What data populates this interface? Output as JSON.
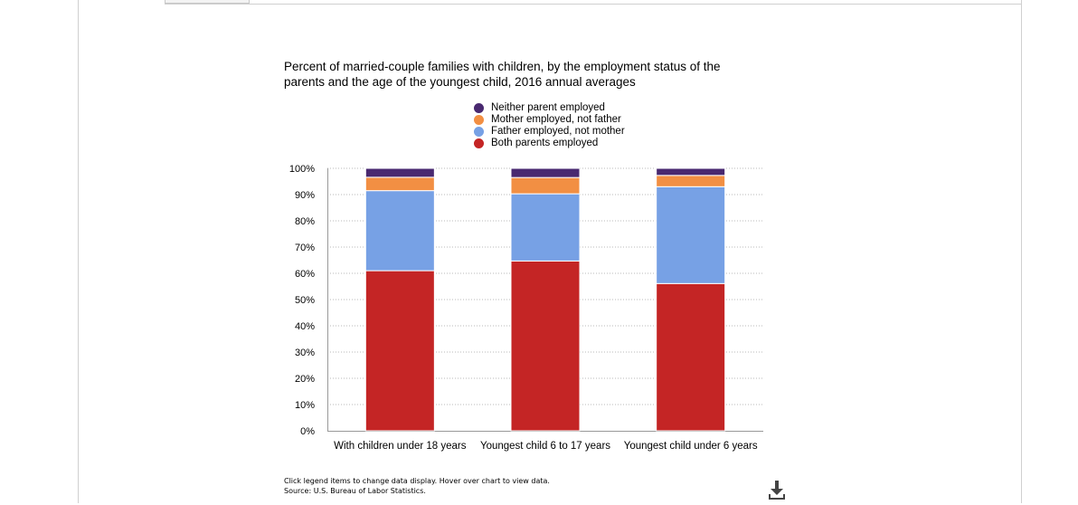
{
  "chart_data": {
    "type": "bar",
    "stacked": true,
    "title": "Percent of married-couple families with children, by the employment status of the parents and the age of the youngest child, 2016 annual averages",
    "categories": [
      "With children under 18 years",
      "Youngest child 6 to 17 years",
      "Youngest child under 6 years"
    ],
    "series": [
      {
        "name": "Both parents employed",
        "color": "#c42525",
        "values": [
          61.0,
          64.7,
          56.1
        ]
      },
      {
        "name": "Father employed, not mother",
        "color": "#77a1e5",
        "values": [
          30.5,
          25.6,
          36.9
        ]
      },
      {
        "name": "Mother employed, not father",
        "color": "#f28f43",
        "values": [
          5.1,
          6.2,
          4.3
        ]
      },
      {
        "name": "Neither parent employed",
        "color": "#492970",
        "values": [
          3.4,
          3.5,
          2.7
        ]
      }
    ],
    "legend_order": [
      "Neither parent employed",
      "Mother employed, not father",
      "Father employed, not mother",
      "Both parents employed"
    ],
    "ylim": [
      0,
      100
    ],
    "yticks": [
      0,
      10,
      20,
      30,
      40,
      50,
      60,
      70,
      80,
      90,
      100
    ],
    "ytick_labels": [
      "0%",
      "10%",
      "20%",
      "30%",
      "40%",
      "50%",
      "60%",
      "70%",
      "80%",
      "90%",
      "100%"
    ],
    "grid": true,
    "legend_position": "top"
  },
  "footnote": {
    "line1": "Click legend items to change data display. Hover over chart to view data.",
    "line2": "Source: U.S. Bureau of Labor Statistics."
  },
  "icons": {
    "download": "download-icon"
  }
}
